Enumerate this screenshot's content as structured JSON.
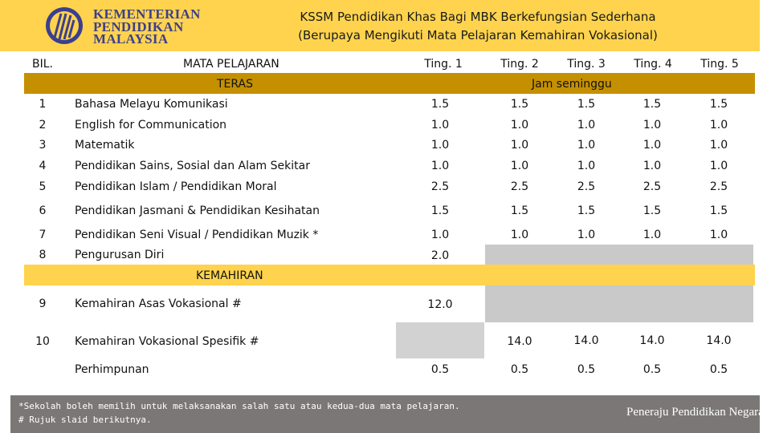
{
  "header": {
    "logo_lines": [
      "KEMENTERIAN",
      "PENDIDIKAN",
      "MALAYSIA"
    ],
    "title_line1": "KSSM Pendidikan Khas Bagi MBK Berkefungsian Sederhana",
    "title_line2": "(Berupaya Mengikuti Mata Pelajaran Kemahiran Vokasional)"
  },
  "colors": {
    "band": "#ffd34d",
    "teras_bar": "#c59000",
    "grey_cell": "#c9c9c9",
    "footer": "#7c7777"
  },
  "table": {
    "col_bil": "BIL.",
    "col_subject": "MATA PELAJARAN",
    "levels": [
      "Ting. 1",
      "Ting. 2",
      "Ting. 3",
      "Ting. 4",
      "Ting. 5"
    ],
    "teras_label": "TERAS",
    "hours_label": "Jam seminggu",
    "kemahiran_label": "KEMAHIRAN",
    "rows": [
      {
        "no": "1",
        "subject": "Bahasa Melayu Komunikasi",
        "v": [
          "1.5",
          "1.5",
          "1.5",
          "1.5",
          "1.5"
        ]
      },
      {
        "no": "2",
        "subject": "English for Communication",
        "v": [
          "1.0",
          "1.0",
          "1.0",
          "1.0",
          "1.0"
        ]
      },
      {
        "no": "3",
        "subject": "Matematik",
        "v": [
          "1.0",
          "1.0",
          "1.0",
          "1.0",
          "1.0"
        ]
      },
      {
        "no": "4",
        "subject": "Pendidikan Sains, Sosial dan Alam Sekitar",
        "v": [
          "1.0",
          "1.0",
          "1.0",
          "1.0",
          "1.0"
        ]
      },
      {
        "no": "5",
        "subject": "Pendidikan Islam / Pendidikan Moral",
        "v": [
          "2.5",
          "2.5",
          "2.5",
          "2.5",
          "2.5"
        ]
      },
      {
        "no": "6",
        "subject": "Pendidikan Jasmani & Pendidikan Kesihatan",
        "v": [
          "1.5",
          "1.5",
          "1.5",
          "1.5",
          "1.5"
        ]
      },
      {
        "no": "7",
        "subject": "Pendidikan Seni Visual / Pendidikan Muzik *",
        "v": [
          "1.0",
          "1.0",
          "1.0",
          "1.0",
          "1.0"
        ]
      },
      {
        "no": "8",
        "subject": "Pengurusan Diri",
        "v": [
          "2.0"
        ]
      },
      {
        "no": "9",
        "subject": "Kemahiran Asas Vokasional #",
        "v": [
          "12.0"
        ]
      },
      {
        "no": "10",
        "subject": "Kemahiran Vokasional Spesifik #",
        "v": [
          "14.0",
          "14.0",
          "14.0",
          "14.0"
        ]
      },
      {
        "no": "",
        "subject": "Perhimpunan",
        "v": [
          "0.5",
          "0.5",
          "0.5",
          "0.5",
          "0.5"
        ]
      }
    ]
  },
  "footer": {
    "note1": "*Sekolah boleh memilih untuk melaksanakan salah satu atau kedua-dua mata pelajaran.",
    "note2": "# Rujuk slaid berikutnya.",
    "tagline": "Peneraju Pendidikan Negara"
  }
}
